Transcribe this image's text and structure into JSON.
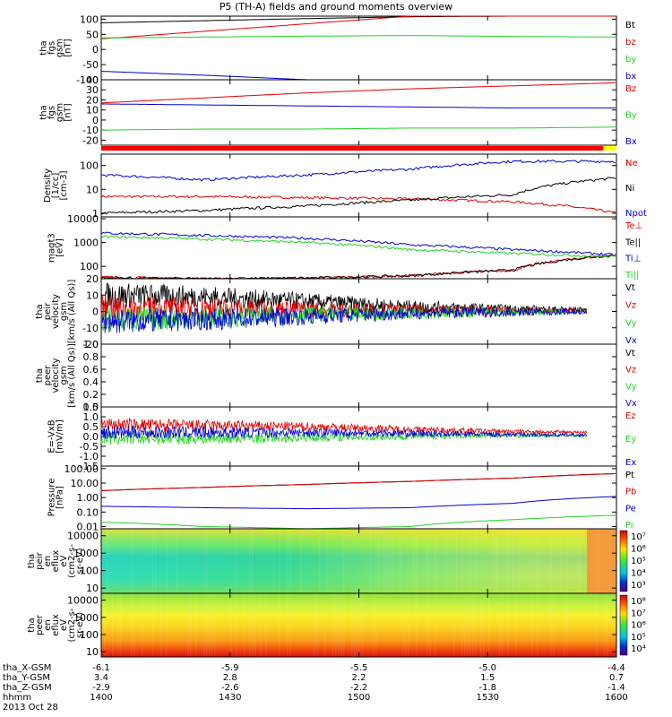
{
  "title": "P5 (TH-A) fields and ground moments overview",
  "colors": {
    "black": "#000000",
    "red": "#e00000",
    "green": "#22d322",
    "blue": "#0000d0"
  },
  "chart_data": [
    {
      "type": "line",
      "ylabel": [
        "tha",
        "fgs",
        "gsm",
        "[nT]"
      ],
      "yticks": [
        "100",
        "50",
        "0",
        "-50",
        "-100"
      ],
      "ylim": [
        -100,
        110
      ],
      "series": [
        {
          "name": "Bt",
          "color": "black",
          "values": [
            88,
            95,
            102,
            108,
            110,
            110
          ]
        },
        {
          "name": "bz",
          "color": "red",
          "values": [
            35,
            60,
            85,
            110,
            110,
            110
          ]
        },
        {
          "name": "by",
          "color": "green",
          "values": [
            38,
            41,
            44,
            46,
            43,
            41
          ]
        },
        {
          "name": "bx",
          "color": "blue",
          "values": [
            -72,
            -85,
            -100,
            -100,
            -100,
            -100
          ]
        }
      ]
    },
    {
      "type": "line",
      "ylabel": [
        "tha",
        "fgs",
        "gsm",
        "[nT]"
      ],
      "yticks": [
        "40",
        "30",
        "20",
        "10",
        "0",
        "-10",
        "-20"
      ],
      "ylim": [
        -25,
        40
      ],
      "series": [
        {
          "name": "Bz",
          "color": "red",
          "values": [
            17,
            22,
            27,
            31,
            34,
            37
          ]
        },
        {
          "name": "By",
          "color": "green",
          "values": [
            -10,
            -9,
            -9,
            -8,
            -8,
            -7
          ]
        },
        {
          "name": "Bx",
          "color": "blue",
          "values": [
            16,
            15,
            14,
            13,
            12,
            12
          ]
        }
      ]
    },
    {
      "type": "line",
      "ylabel": [
        "Density",
        "[1/cc]",
        "[cm-3]"
      ],
      "yticks": [
        "100",
        "10",
        "1"
      ],
      "log": true,
      "ylim": [
        0.7,
        300
      ],
      "series": [
        {
          "name": "Ne",
          "color": "red",
          "values": [
            5,
            5,
            4.5,
            4,
            3,
            1
          ]
        },
        {
          "name": "Ni",
          "color": "black",
          "values": [
            1,
            1.3,
            2,
            3.5,
            6,
            30
          ]
        },
        {
          "name": "Npot",
          "color": "blue",
          "values": [
            40,
            25,
            40,
            70,
            150,
            150
          ]
        }
      ]
    },
    {
      "type": "line",
      "ylabel": [
        "magt3",
        "[eV]"
      ],
      "yticks": [
        "10000",
        "1000",
        "100"
      ],
      "log": true,
      "ylim": [
        30,
        12000
      ],
      "series": [
        {
          "name": "Te⊥",
          "color": "red",
          "values": [
            35,
            30,
            32,
            40,
            70,
            300
          ]
        },
        {
          "name": "Te||",
          "color": "black",
          "values": [
            33,
            30,
            32,
            40,
            70,
            300
          ]
        },
        {
          "name": "Ti⊥",
          "color": "blue",
          "values": [
            2500,
            2000,
            1500,
            800,
            500,
            300
          ]
        },
        {
          "name": "Ti||",
          "color": "green",
          "values": [
            1800,
            1400,
            1000,
            500,
            350,
            250
          ]
        }
      ]
    },
    {
      "type": "line",
      "ylabel": [
        "tha",
        "peir",
        "velocity",
        "gsm",
        "[km/s (All Qs)]"
      ],
      "yticks": [
        "20",
        "10",
        "0",
        "-10",
        "-20"
      ],
      "ylim": [
        -20,
        20
      ],
      "series": [
        {
          "name": "Vt",
          "color": "black",
          "values": [
            10,
            9,
            6,
            3,
            1.5,
            1
          ]
        },
        {
          "name": "Vz",
          "color": "red",
          "values": [
            2,
            2,
            1,
            0.5,
            0.2,
            0
          ]
        },
        {
          "name": "Vy",
          "color": "green",
          "values": [
            -5,
            -4,
            -2,
            -1,
            -0.5,
            0
          ]
        },
        {
          "name": "Vx",
          "color": "blue",
          "values": [
            -6,
            -5,
            -3,
            -1,
            -0.5,
            0
          ]
        }
      ]
    },
    {
      "type": "line",
      "ylabel": [
        "tha",
        "peer",
        "velocity",
        "gsm",
        "[km/s (All Qs)]"
      ],
      "yticks": [
        "1.0",
        "0.8",
        "0.6",
        "0.4",
        "0.2",
        "0.0"
      ],
      "ylim": [
        0,
        1
      ],
      "series": [
        {
          "name": "Vt",
          "color": "black",
          "values": []
        },
        {
          "name": "Vz",
          "color": "red",
          "values": []
        },
        {
          "name": "Vy",
          "color": "green",
          "values": []
        },
        {
          "name": "Vx",
          "color": "blue",
          "values": []
        }
      ]
    },
    {
      "type": "line",
      "ylabel": [
        "E=-VxB",
        "[mV/m]"
      ],
      "yticks": [
        "1.5",
        "1.0",
        "0.5",
        "0.0",
        "-0.5",
        "-1.0",
        "-1.5"
      ],
      "ylim": [
        -1.5,
        1.5
      ],
      "series": [
        {
          "name": "Ez",
          "color": "red",
          "values": [
            0.6,
            0.55,
            0.5,
            0.35,
            0.25,
            0.2
          ]
        },
        {
          "name": "Ey",
          "color": "green",
          "values": [
            -0.1,
            -0.1,
            -0.05,
            0,
            0.05,
            0.05
          ]
        },
        {
          "name": "Ex",
          "color": "blue",
          "values": [
            0.2,
            0.2,
            0.2,
            0.15,
            0.1,
            0.05
          ]
        }
      ]
    },
    {
      "type": "line",
      "ylabel": [
        "Pressure",
        "[nPa]"
      ],
      "yticks": [
        "100.00",
        "10.00",
        "1.00",
        "0.10",
        "0.01"
      ],
      "log": true,
      "ylim": [
        0.007,
        150
      ],
      "series": [
        {
          "name": "Pt",
          "color": "black",
          "values": [
            3,
            5,
            8,
            13,
            22,
            45
          ]
        },
        {
          "name": "Pb",
          "color": "red",
          "values": [
            3,
            5,
            8,
            13,
            22,
            45
          ]
        },
        {
          "name": "Pe",
          "color": "blue",
          "values": [
            0.25,
            0.2,
            0.17,
            0.2,
            0.4,
            1.2
          ]
        },
        {
          "name": "Pi",
          "color": "green",
          "values": [
            0.02,
            0.01,
            0.007,
            0.01,
            0.03,
            0.06
          ]
        }
      ]
    },
    {
      "type": "heatmap",
      "ylabel": [
        "tha",
        "peir",
        "en",
        "eflux",
        "eV",
        "(cm2-s-",
        "sr-eV)"
      ],
      "yticks": [
        "10000",
        "1000",
        "100",
        "10"
      ],
      "log": true,
      "ylim": [
        5,
        25000
      ],
      "colorbar_ticks": [
        "10⁷",
        "10⁶",
        "10⁵",
        "10⁴",
        "10³"
      ]
    },
    {
      "type": "heatmap",
      "ylabel": [
        "tha",
        "peer",
        "en",
        "eflux",
        "eV",
        "(cm2-s-",
        "sr-eV)"
      ],
      "yticks": [
        "10000",
        "1000",
        "100",
        "10"
      ],
      "log": true,
      "ylim": [
        5,
        25000
      ],
      "colorbar_ticks": [
        "10⁸",
        "10⁷",
        "10⁶",
        "10⁵",
        "10⁴"
      ]
    }
  ],
  "x_axis": {
    "ticks": [
      "1400",
      "1430",
      "1500",
      "1530",
      "1600"
    ],
    "row_labels": [
      "tha_X-GSM",
      "tha_Y-GSM",
      "tha_Z-GSM",
      "hhmm",
      "2013 Oct 28"
    ],
    "rows": [
      [
        "-6.1",
        "-5.9",
        "-5.5",
        "-5.0",
        "-4.4"
      ],
      [
        "3.4",
        "2.8",
        "2.2",
        "1.5",
        "0.7"
      ],
      [
        "-2.9",
        "-2.6",
        "-2.2",
        "-1.8",
        "-1.4"
      ],
      [
        "1400",
        "1430",
        "1500",
        "1530",
        "1600"
      ]
    ]
  }
}
